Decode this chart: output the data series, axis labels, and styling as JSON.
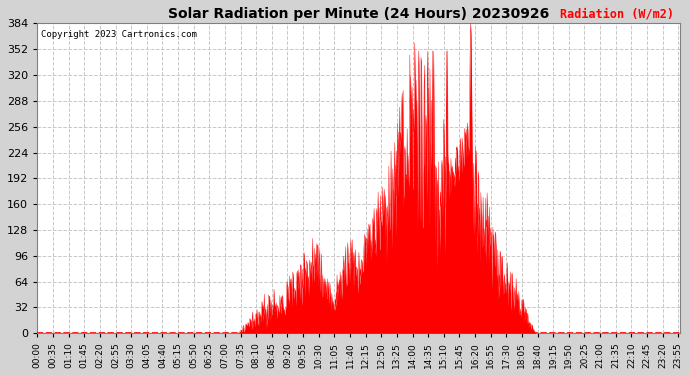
{
  "title": "Solar Radiation per Minute (24 Hours) 20230926",
  "ylabel": "Radiation (W/m2)",
  "copyright_text": "Copyright 2023 Cartronics.com",
  "bar_color": "#ff0000",
  "background_color": "#d3d3d3",
  "plot_bg_color": "#ffffff",
  "grid_color": "#c8c8c8",
  "zero_line_color": "#ff0000",
  "ylim": [
    0,
    384
  ],
  "yticks": [
    0.0,
    32.0,
    64.0,
    96.0,
    128.0,
    160.0,
    192.0,
    224.0,
    256.0,
    288.0,
    320.0,
    352.0,
    384.0
  ],
  "total_minutes": 1440,
  "xtick_interval": 35,
  "x_labels": [
    "00:00",
    "00:35",
    "01:10",
    "01:45",
    "02:20",
    "02:55",
    "03:30",
    "04:05",
    "04:40",
    "05:15",
    "05:50",
    "06:25",
    "07:00",
    "07:35",
    "08:10",
    "08:45",
    "09:20",
    "09:55",
    "10:30",
    "11:05",
    "11:40",
    "12:15",
    "12:50",
    "13:25",
    "14:00",
    "14:35",
    "15:10",
    "15:45",
    "16:20",
    "16:55",
    "17:30",
    "18:05",
    "18:40",
    "19:15",
    "19:50",
    "20:25",
    "21:00",
    "21:35",
    "22:10",
    "22:45",
    "23:20",
    "23:55"
  ]
}
